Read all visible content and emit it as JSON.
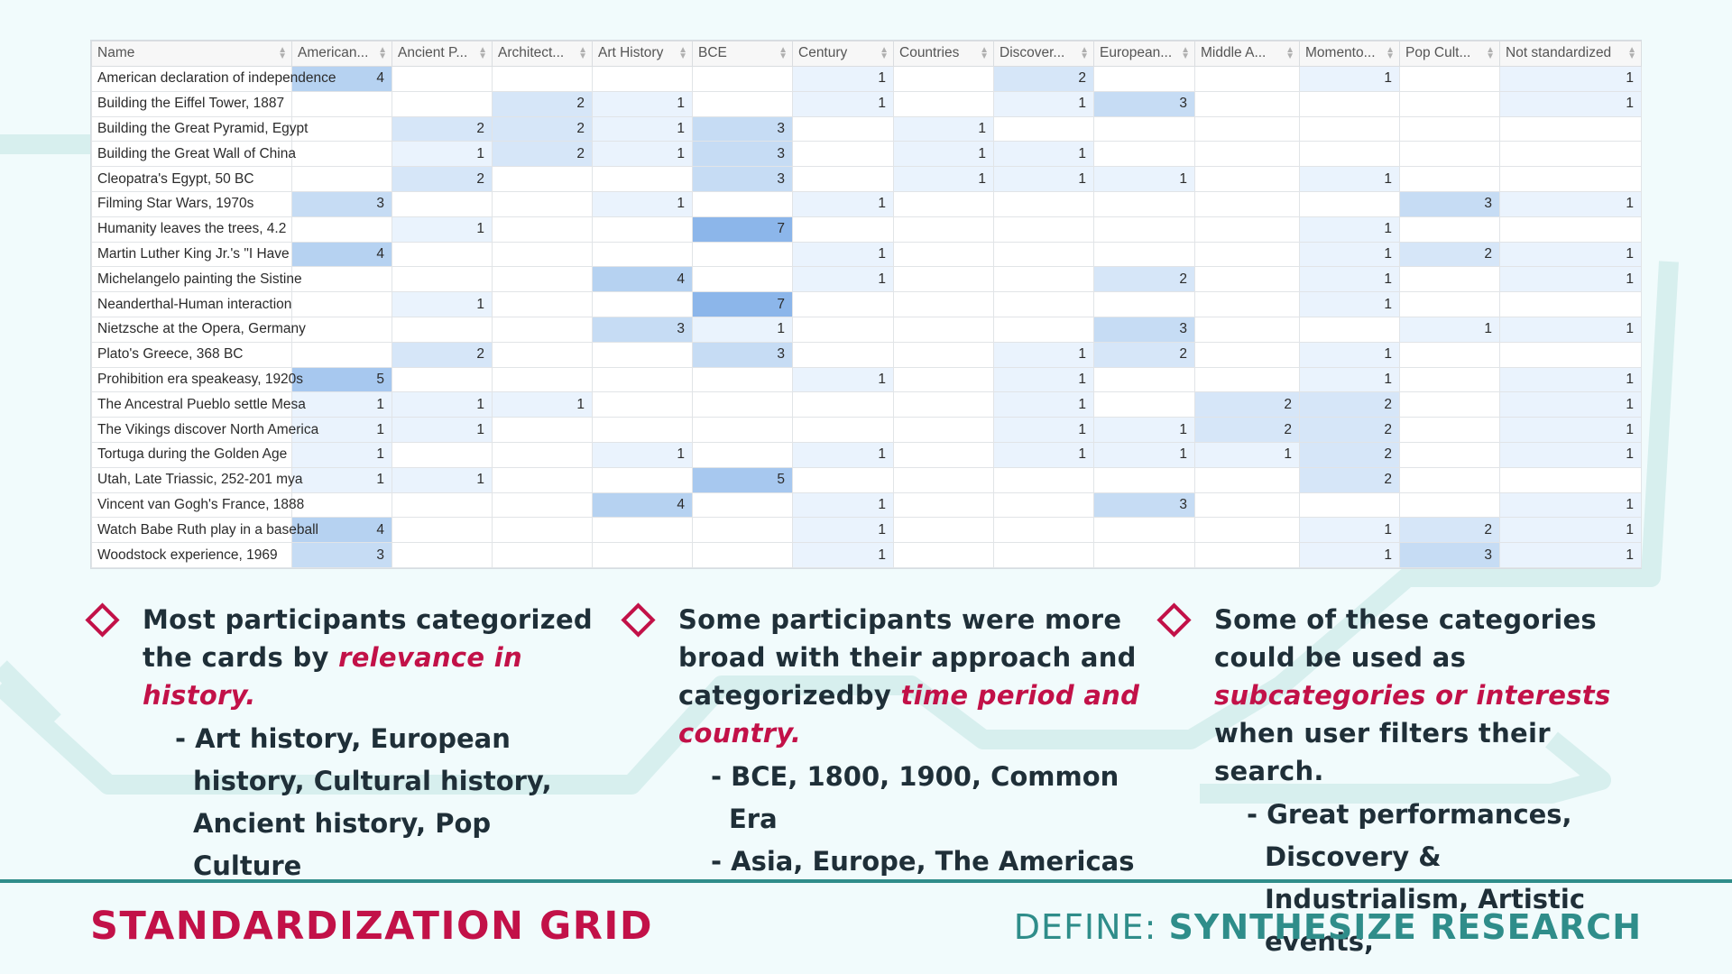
{
  "grid": {
    "columns": [
      "Name",
      "American...",
      "Ancient P...",
      "Architect...",
      "Art History",
      "BCE",
      "Century",
      "Countries",
      "Discover...",
      "European...",
      "Middle A...",
      "Momento...",
      "Pop Cult...",
      "Not standardized"
    ],
    "rows": [
      {
        "name": "American declaration of independence",
        "values": [
          4,
          null,
          null,
          null,
          null,
          1,
          null,
          2,
          null,
          null,
          1,
          null,
          1
        ]
      },
      {
        "name": "Building the Eiffel Tower, 1887",
        "values": [
          null,
          null,
          2,
          1,
          null,
          1,
          null,
          1,
          3,
          null,
          null,
          null,
          1
        ]
      },
      {
        "name": "Building the Great Pyramid, Egypt",
        "values": [
          null,
          2,
          2,
          1,
          3,
          null,
          1,
          null,
          null,
          null,
          null,
          null,
          null
        ]
      },
      {
        "name": "Building the Great Wall of China",
        "values": [
          null,
          1,
          2,
          1,
          3,
          null,
          1,
          1,
          null,
          null,
          null,
          null,
          null
        ]
      },
      {
        "name": "Cleopatra's Egypt, 50 BC",
        "values": [
          null,
          2,
          null,
          null,
          3,
          null,
          1,
          1,
          1,
          null,
          1,
          null,
          null
        ]
      },
      {
        "name": "Filming Star Wars, 1970s",
        "values": [
          3,
          null,
          null,
          1,
          null,
          1,
          null,
          null,
          null,
          null,
          null,
          3,
          1
        ]
      },
      {
        "name": "Humanity leaves the trees, 4.2",
        "values": [
          null,
          1,
          null,
          null,
          7,
          null,
          null,
          null,
          null,
          null,
          1,
          null,
          null
        ]
      },
      {
        "name": "Martin Luther King Jr.'s \"I Have",
        "values": [
          4,
          null,
          null,
          null,
          null,
          1,
          null,
          null,
          null,
          null,
          1,
          2,
          1
        ]
      },
      {
        "name": "Michelangelo painting the Sistine",
        "values": [
          null,
          null,
          null,
          4,
          null,
          1,
          null,
          null,
          2,
          null,
          1,
          null,
          1
        ]
      },
      {
        "name": "Neanderthal-Human interaction",
        "values": [
          null,
          1,
          null,
          null,
          7,
          null,
          null,
          null,
          null,
          null,
          1,
          null,
          null
        ]
      },
      {
        "name": "Nietzsche at the Opera, Germany",
        "values": [
          null,
          null,
          null,
          3,
          1,
          null,
          null,
          null,
          3,
          null,
          null,
          1,
          1
        ]
      },
      {
        "name": "Plato's Greece, 368 BC",
        "values": [
          null,
          2,
          null,
          null,
          3,
          null,
          null,
          1,
          2,
          null,
          1,
          null,
          null
        ]
      },
      {
        "name": "Prohibition era speakeasy, 1920s",
        "values": [
          5,
          null,
          null,
          null,
          null,
          1,
          null,
          1,
          null,
          null,
          1,
          null,
          1
        ]
      },
      {
        "name": "The Ancestral Pueblo settle Mesa",
        "values": [
          1,
          1,
          1,
          null,
          null,
          null,
          null,
          1,
          null,
          2,
          2,
          null,
          1
        ]
      },
      {
        "name": "The Vikings discover North America",
        "values": [
          1,
          1,
          null,
          null,
          null,
          null,
          null,
          1,
          1,
          2,
          2,
          null,
          1
        ]
      },
      {
        "name": "Tortuga during the Golden Age",
        "values": [
          1,
          null,
          null,
          1,
          null,
          1,
          null,
          1,
          1,
          1,
          2,
          null,
          1
        ]
      },
      {
        "name": "Utah, Late Triassic, 252-201 mya",
        "values": [
          1,
          1,
          null,
          null,
          5,
          null,
          null,
          null,
          null,
          null,
          2,
          null,
          null
        ]
      },
      {
        "name": "Vincent van Gogh's France, 1888",
        "values": [
          null,
          null,
          null,
          4,
          null,
          1,
          null,
          null,
          3,
          null,
          null,
          null,
          1
        ]
      },
      {
        "name": "Watch Babe Ruth play in a baseball",
        "values": [
          4,
          null,
          null,
          null,
          null,
          1,
          null,
          null,
          null,
          null,
          1,
          2,
          1
        ]
      },
      {
        "name": "Woodstock experience, 1969",
        "values": [
          3,
          null,
          null,
          null,
          null,
          1,
          null,
          null,
          null,
          null,
          1,
          3,
          1
        ]
      }
    ]
  },
  "bullets": [
    {
      "text_pre": "Most participants categorized the cards by ",
      "highlight": "relevance in history.",
      "text_post": "",
      "subs": [
        "- Art history, European history, Cultural history, Ancient history, Pop Culture"
      ]
    },
    {
      "text_pre": "Some participants were more broad with their approach and categorizedby ",
      "highlight": "time period and country.",
      "text_post": "",
      "subs": [
        "- BCE, 1800, 1900, Common Era",
        "- Asia, Europe, The Americas"
      ]
    },
    {
      "text_pre": "Some of these categories could be used as ",
      "highlight": "subcategories or interests",
      "text_post": " when user filters their search.",
      "subs": [
        "- Great performances, Discovery & Industrialism, Artistic events,"
      ]
    }
  ],
  "footer": {
    "title": "STANDARDIZATION GRID",
    "define_label": "DEFINE:",
    "define_value": "SYNTHESIZE RESEARCH"
  },
  "colors": {
    "accent": "#c21148",
    "teal": "#2f8d8a",
    "cell_level_1": "#eaf3fd",
    "cell_level_2": "#d6e6f8",
    "cell_level_3": "#c6dcf4",
    "cell_level_4": "#b6d2f1",
    "cell_level_5": "#a7c8ef",
    "cell_level_7": "#8cb6ea"
  },
  "icons": [
    "sort-icon",
    "diamond-icon"
  ]
}
